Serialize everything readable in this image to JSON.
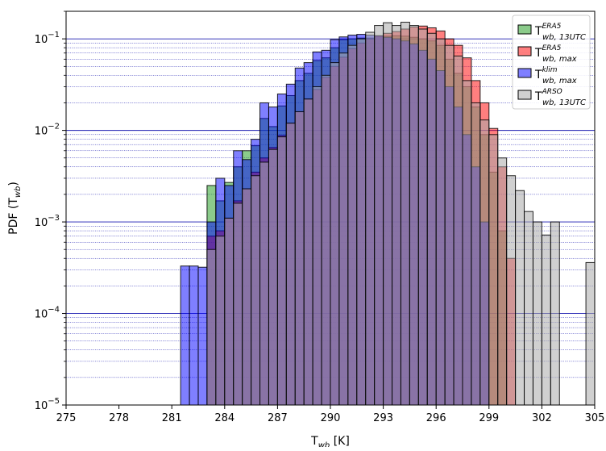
{
  "chart_data": {
    "type": "bar",
    "subtype": "overlaid-histogram",
    "title": "",
    "xlabel": {
      "main": "T",
      "sub": "wb",
      "rest": " [K]"
    },
    "ylabel": {
      "main": "PDF (T",
      "sub": "wb",
      "rest": ")"
    },
    "x_scale": "linear",
    "y_scale": "log",
    "xlim": [
      275,
      305
    ],
    "ylim": [
      1e-05,
      0.2
    ],
    "bin_width": 0.5,
    "x_ticks": [
      275,
      278,
      281,
      284,
      287,
      290,
      293,
      296,
      299,
      302,
      305
    ],
    "y_ticks": [
      {
        "value": 1e-05,
        "base": "10",
        "exp": "−5"
      },
      {
        "value": 0.0001,
        "base": "10",
        "exp": "−4"
      },
      {
        "value": 0.001,
        "base": "10",
        "exp": "−3"
      },
      {
        "value": 0.01,
        "base": "10",
        "exp": "−2"
      },
      {
        "value": 0.1,
        "base": "10",
        "exp": "−1"
      }
    ],
    "grid": {
      "major": true,
      "minor": true,
      "axis": "y",
      "color": "#1a1ab0"
    },
    "legend_position": "top-right",
    "series": [
      {
        "name": "T_wb,13UTC^ERA5",
        "label_main": "T",
        "label_sup": "ERA5",
        "label_sub": "wb, 13UTC",
        "color": "#2ca02c",
        "alpha": 0.55,
        "x": [
          283.0,
          283.5,
          284.0,
          284.5,
          285.0,
          285.5,
          286.0,
          286.5,
          287.0,
          287.5,
          288.0,
          288.5,
          289.0,
          289.5,
          290.0,
          290.5,
          291.0,
          291.5,
          292.0,
          292.5,
          293.0,
          293.5,
          294.0,
          294.5,
          295.0,
          295.5,
          296.0,
          296.5,
          297.0,
          297.5,
          298.0,
          298.5,
          299.0,
          299.5
        ],
        "values": [
          0.0025,
          0.0017,
          0.0027,
          0.004,
          0.006,
          0.0068,
          0.0135,
          0.011,
          0.0185,
          0.024,
          0.035,
          0.042,
          0.058,
          0.062,
          0.08,
          0.098,
          0.1,
          0.102,
          0.102,
          0.105,
          0.107,
          0.108,
          0.107,
          0.104,
          0.1,
          0.095,
          0.085,
          0.06,
          0.042,
          0.03,
          0.018,
          0.009,
          0.0035,
          0.0008
        ]
      },
      {
        "name": "T_wb,max^ERA5",
        "label_main": "T",
        "label_sup": "ERA5",
        "label_sub": "wb, max",
        "color": "#ff0000",
        "alpha": 0.5,
        "x": [
          283.0,
          283.5,
          284.0,
          284.5,
          285.0,
          285.5,
          286.0,
          286.5,
          287.0,
          287.5,
          288.0,
          288.5,
          289.0,
          289.5,
          290.0,
          290.5,
          291.0,
          291.5,
          292.0,
          292.5,
          293.0,
          293.5,
          294.0,
          294.5,
          295.0,
          295.5,
          296.0,
          296.5,
          297.0,
          297.5,
          298.0,
          298.5,
          299.0,
          299.5,
          300.0
        ],
        "values": [
          0.0007,
          0.0008,
          0.0011,
          0.0017,
          0.0023,
          0.0035,
          0.005,
          0.0065,
          0.0088,
          0.012,
          0.016,
          0.022,
          0.028,
          0.038,
          0.05,
          0.063,
          0.078,
          0.09,
          0.1,
          0.108,
          0.115,
          0.12,
          0.128,
          0.135,
          0.138,
          0.132,
          0.122,
          0.1,
          0.085,
          0.062,
          0.035,
          0.02,
          0.0105,
          0.004,
          0.0004
        ]
      },
      {
        "name": "T_wb,max^klim",
        "label_main": "T",
        "label_sup": "klim",
        "label_sub": "wb, max",
        "color": "#0000ff",
        "alpha": 0.5,
        "x": [
          281.5,
          282.0,
          282.5,
          283.0,
          283.5,
          284.0,
          284.5,
          285.0,
          285.5,
          286.0,
          286.5,
          287.0,
          287.5,
          288.0,
          288.5,
          289.0,
          289.5,
          290.0,
          290.5,
          291.0,
          291.5,
          292.0,
          292.5,
          293.0,
          293.5,
          294.0,
          294.5,
          295.0,
          295.5,
          296.0,
          296.5,
          297.0,
          297.5,
          298.0,
          298.5
        ],
        "values": [
          0.00033,
          0.00033,
          0.00032,
          0.001,
          0.003,
          0.0025,
          0.006,
          0.0048,
          0.008,
          0.02,
          0.018,
          0.025,
          0.032,
          0.048,
          0.055,
          0.072,
          0.075,
          0.098,
          0.105,
          0.11,
          0.112,
          0.11,
          0.108,
          0.104,
          0.1,
          0.095,
          0.088,
          0.075,
          0.06,
          0.045,
          0.03,
          0.018,
          0.009,
          0.004,
          0.001
        ]
      },
      {
        "name": "T_wb,13UTC^ARSO",
        "label_main": "T",
        "label_sup": "ARSO",
        "label_sub": "wb, 13UTC",
        "color": "#aaaaaa",
        "alpha": 0.55,
        "x": [
          283.0,
          283.5,
          284.0,
          284.5,
          285.0,
          285.5,
          286.0,
          286.5,
          287.0,
          287.5,
          288.0,
          288.5,
          289.0,
          289.5,
          290.0,
          290.5,
          291.0,
          291.5,
          292.0,
          292.5,
          293.0,
          293.5,
          294.0,
          294.5,
          295.0,
          295.5,
          296.0,
          296.5,
          297.0,
          297.5,
          298.0,
          298.5,
          299.0,
          299.5,
          300.0,
          300.5,
          301.0,
          301.5,
          302.0,
          302.5,
          304.5
        ],
        "values": [
          0.0005,
          0.0007,
          0.0011,
          0.0016,
          0.0023,
          0.0032,
          0.0045,
          0.0062,
          0.0085,
          0.012,
          0.016,
          0.022,
          0.03,
          0.04,
          0.055,
          0.07,
          0.085,
          0.1,
          0.118,
          0.14,
          0.15,
          0.14,
          0.152,
          0.14,
          0.128,
          0.115,
          0.1,
          0.085,
          0.065,
          0.035,
          0.02,
          0.013,
          0.009,
          0.005,
          0.0032,
          0.0022,
          0.0013,
          0.001,
          0.00072,
          0.001,
          0.00036
        ]
      }
    ]
  }
}
